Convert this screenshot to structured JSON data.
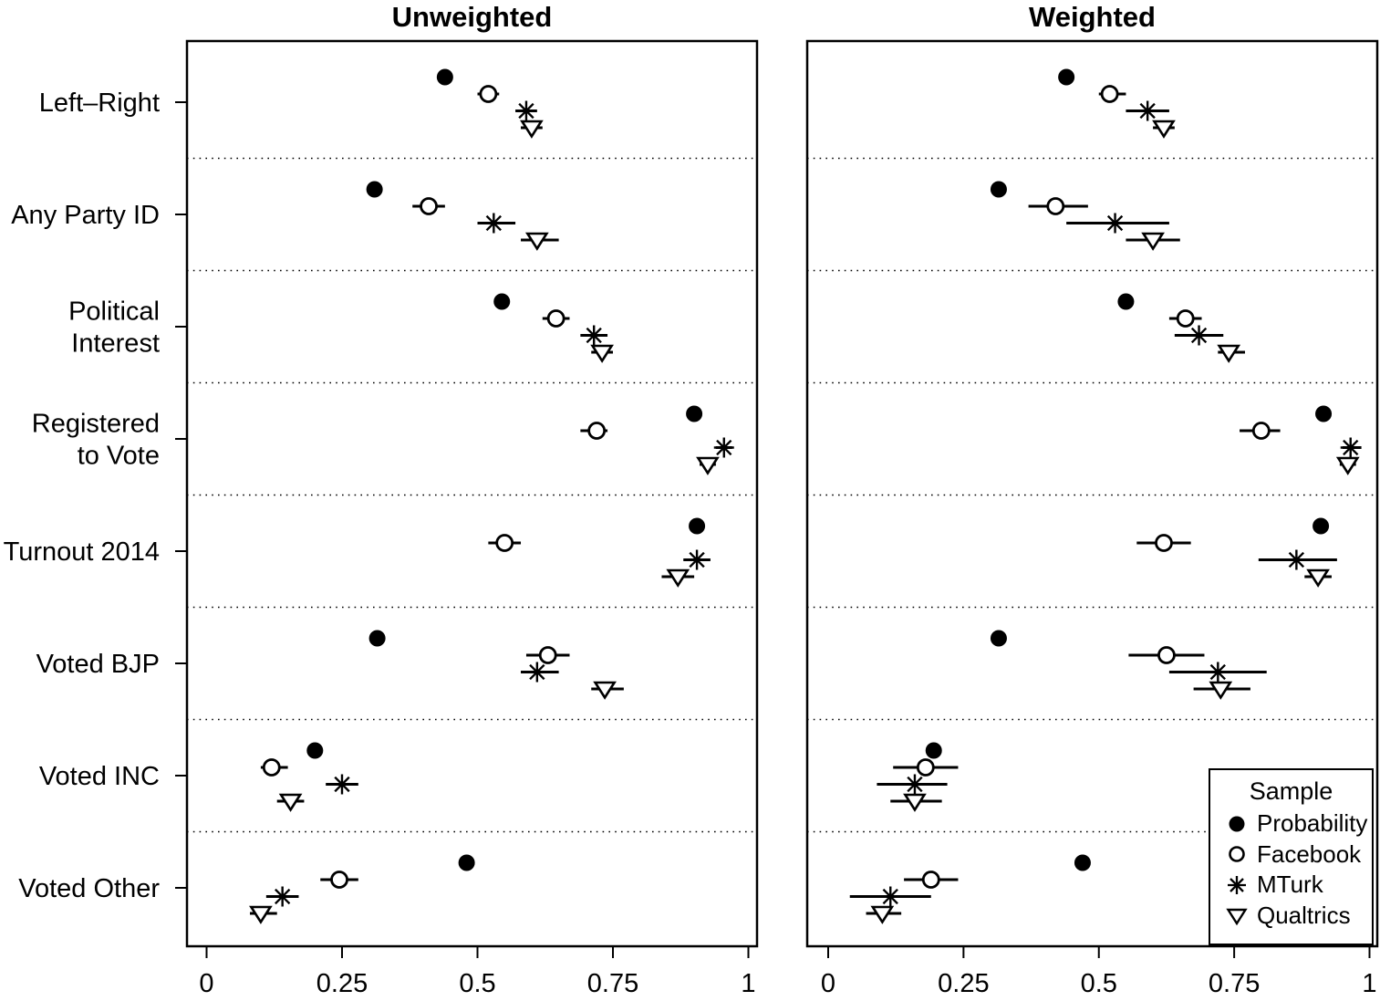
{
  "figure": {
    "background": "#ffffff",
    "foreground": "#000000",
    "panels": [
      {
        "title": "Unweighted"
      },
      {
        "title": "Weighted"
      }
    ],
    "legend": {
      "title": "Sample",
      "items": [
        {
          "label": "Probability",
          "marker": "filled-circle"
        },
        {
          "label": "Facebook",
          "marker": "open-circle"
        },
        {
          "label": "MTurk",
          "marker": "asterisk"
        },
        {
          "label": "Qualtrics",
          "marker": "open-triangle-down"
        }
      ]
    }
  },
  "chart_data": {
    "type": "scatter",
    "subtype": "two-panel grouped dot plot with horizontal 95% error bars",
    "xlim": [
      0,
      1
    ],
    "x_ticks": [
      0,
      0.25,
      0.5,
      0.75,
      1
    ],
    "x_tick_labels": [
      "0",
      "0.25",
      "0.5",
      "0.75",
      "1"
    ],
    "grid": "dotted horizontal separator lines between categories",
    "legend_position": "bottom-right of Weighted panel",
    "categories": [
      "Left–Right",
      "Any Party ID",
      "Political Interest",
      "Registered to Vote",
      "Turnout 2014",
      "Voted BJP",
      "Voted INC",
      "Voted Other"
    ],
    "category_label_lines": [
      [
        "Left–Right"
      ],
      [
        "Any Party ID"
      ],
      [
        "Political",
        "Interest"
      ],
      [
        "Registered",
        "to Vote"
      ],
      [
        "Turnout 2014"
      ],
      [
        "Voted BJP"
      ],
      [
        "Voted INC"
      ],
      [
        "Voted Other"
      ]
    ],
    "panels": [
      {
        "title": "Unweighted",
        "series": [
          {
            "name": "Probability",
            "marker": "filled-circle",
            "values": [
              0.44,
              0.31,
              0.545,
              0.9,
              0.905,
              0.315,
              0.2,
              0.48
            ],
            "ci_low": [
              0.43,
              0.3,
              0.535,
              0.89,
              0.895,
              0.305,
              0.19,
              0.47
            ],
            "ci_high": [
              0.45,
              0.32,
              0.555,
              0.91,
              0.915,
              0.325,
              0.21,
              0.49
            ]
          },
          {
            "name": "Facebook",
            "marker": "open-circle",
            "values": [
              0.52,
              0.41,
              0.645,
              0.72,
              0.55,
              0.63,
              0.12,
              0.245
            ],
            "ci_low": [
              0.5,
              0.38,
              0.62,
              0.69,
              0.52,
              0.59,
              0.1,
              0.21
            ],
            "ci_high": [
              0.54,
              0.44,
              0.67,
              0.74,
              0.58,
              0.67,
              0.15,
              0.28
            ]
          },
          {
            "name": "MTurk",
            "marker": "asterisk",
            "values": [
              0.59,
              0.53,
              0.715,
              0.955,
              0.905,
              0.61,
              0.25,
              0.14
            ],
            "ci_low": [
              0.57,
              0.5,
              0.69,
              0.94,
              0.88,
              0.58,
              0.22,
              0.11
            ],
            "ci_high": [
              0.61,
              0.57,
              0.74,
              0.97,
              0.93,
              0.65,
              0.28,
              0.17
            ]
          },
          {
            "name": "Qualtrics",
            "marker": "open-triangle-down",
            "values": [
              0.6,
              0.61,
              0.73,
              0.925,
              0.87,
              0.735,
              0.155,
              0.1
            ],
            "ci_low": [
              0.58,
              0.58,
              0.71,
              0.91,
              0.84,
              0.71,
              0.13,
              0.08
            ],
            "ci_high": [
              0.62,
              0.65,
              0.75,
              0.94,
              0.9,
              0.77,
              0.18,
              0.13
            ]
          }
        ]
      },
      {
        "title": "Weighted",
        "series": [
          {
            "name": "Probability",
            "marker": "filled-circle",
            "values": [
              0.44,
              0.315,
              0.55,
              0.915,
              0.91,
              0.315,
              0.195,
              0.47
            ],
            "ci_low": [
              0.43,
              0.305,
              0.54,
              0.905,
              0.9,
              0.305,
              0.185,
              0.46
            ],
            "ci_high": [
              0.45,
              0.325,
              0.56,
              0.925,
              0.92,
              0.325,
              0.205,
              0.48
            ]
          },
          {
            "name": "Facebook",
            "marker": "open-circle",
            "values": [
              0.52,
              0.42,
              0.66,
              0.8,
              0.62,
              0.625,
              0.18,
              0.19
            ],
            "ci_low": [
              0.5,
              0.37,
              0.63,
              0.76,
              0.57,
              0.555,
              0.12,
              0.14
            ],
            "ci_high": [
              0.55,
              0.48,
              0.69,
              0.835,
              0.67,
              0.695,
              0.24,
              0.24
            ]
          },
          {
            "name": "MTurk",
            "marker": "asterisk",
            "values": [
              0.59,
              0.53,
              0.685,
              0.965,
              0.865,
              0.72,
              0.16,
              0.115
            ],
            "ci_low": [
              0.55,
              0.44,
              0.64,
              0.95,
              0.795,
              0.63,
              0.09,
              0.04
            ],
            "ci_high": [
              0.63,
              0.63,
              0.73,
              0.985,
              0.94,
              0.81,
              0.22,
              0.19
            ]
          },
          {
            "name": "Qualtrics",
            "marker": "open-triangle-down",
            "values": [
              0.62,
              0.6,
              0.74,
              0.96,
              0.905,
              0.725,
              0.16,
              0.1
            ],
            "ci_low": [
              0.6,
              0.55,
              0.72,
              0.945,
              0.88,
              0.675,
              0.115,
              0.07
            ],
            "ci_high": [
              0.64,
              0.65,
              0.77,
              0.975,
              0.93,
              0.78,
              0.21,
              0.135
            ]
          }
        ]
      }
    ]
  }
}
